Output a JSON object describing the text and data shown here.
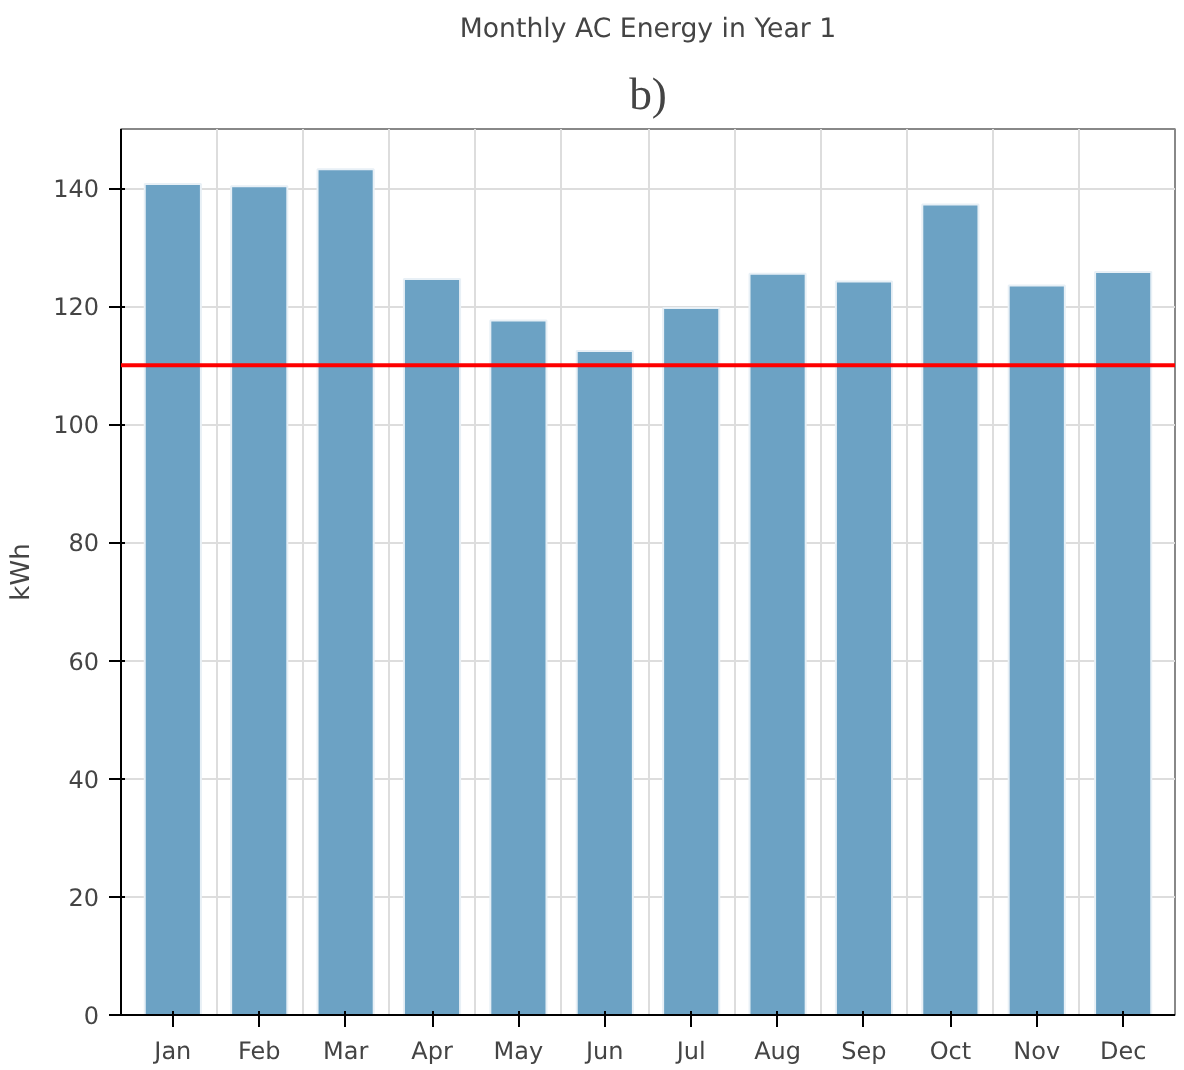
{
  "chart_data": {
    "type": "bar",
    "title": "b)",
    "subtitle": "Monthly AC Energy in Year 1",
    "ylabel": "kWh",
    "categories": [
      "Jan",
      "Feb",
      "Mar",
      "Apr",
      "May",
      "Jun",
      "Jul",
      "Aug",
      "Sep",
      "Oct",
      "Nov",
      "Dec"
    ],
    "values": [
      140.7,
      140.3,
      143.2,
      124.6,
      117.6,
      112.4,
      119.7,
      125.5,
      124.2,
      137.2,
      123.5,
      125.8
    ],
    "color": "#6ca2c4",
    "ylim": [
      0,
      150
    ],
    "yticks": [
      0,
      20,
      40,
      60,
      80,
      100,
      120,
      140
    ],
    "grid": true,
    "ref_lines": [
      {
        "axis": "y",
        "value": 110,
        "color": "#ff0000"
      }
    ]
  }
}
